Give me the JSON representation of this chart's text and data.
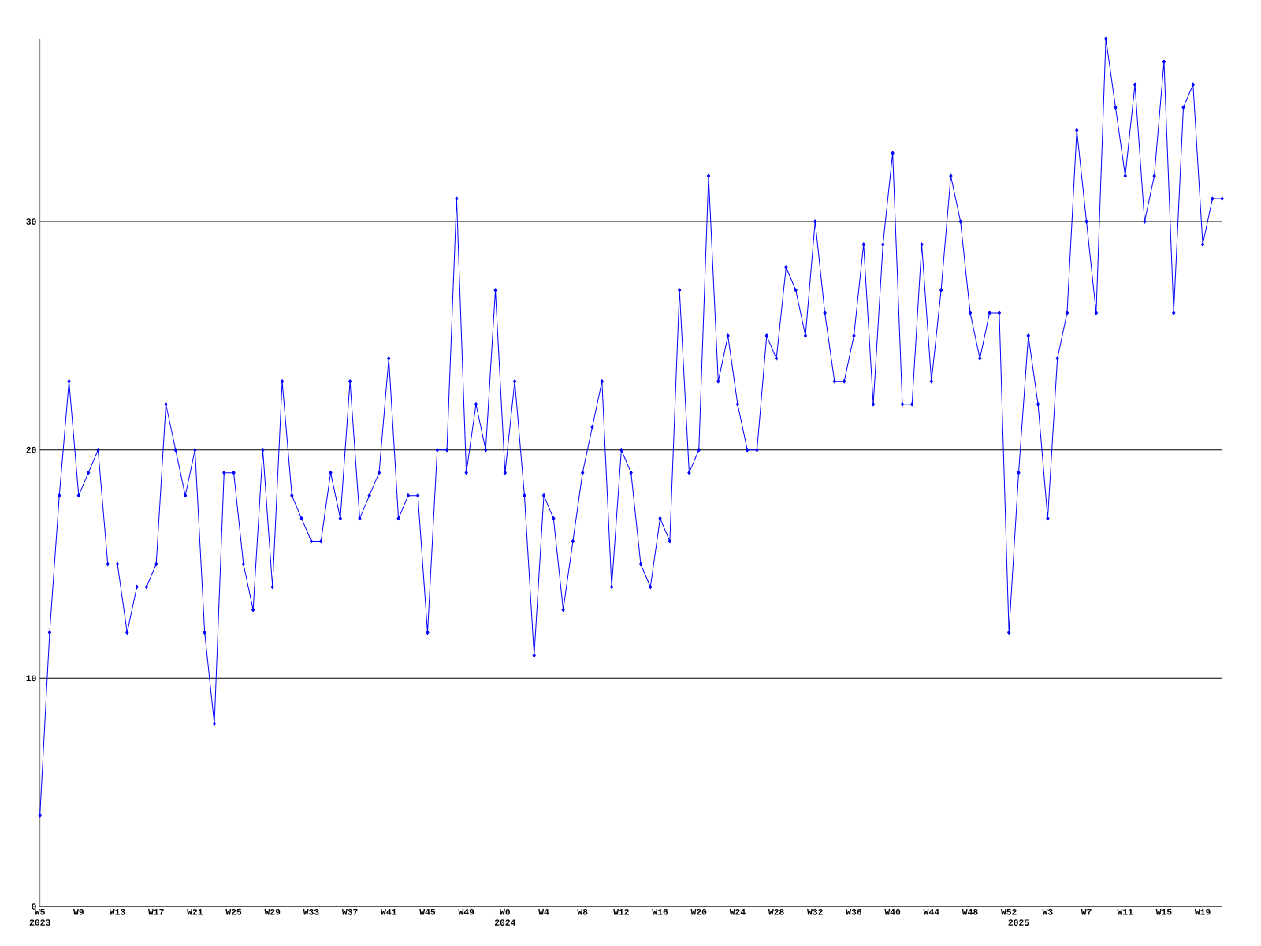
{
  "chart_data": {
    "type": "line",
    "color": "#0000ff",
    "marker": "diamond",
    "grid": "y",
    "ylim": [
      0,
      38
    ],
    "yticks": [
      0,
      10,
      20,
      30
    ],
    "categories": [
      "W5 2023",
      null,
      null,
      null,
      "W9",
      null,
      null,
      null,
      "W13",
      null,
      null,
      null,
      "W17",
      null,
      null,
      null,
      "W21",
      null,
      null,
      null,
      "W25",
      null,
      null,
      null,
      "W29",
      null,
      null,
      null,
      "W33",
      null,
      null,
      null,
      "W37",
      null,
      null,
      null,
      "W41",
      null,
      null,
      null,
      "W45",
      null,
      null,
      null,
      "W49",
      null,
      null,
      null,
      "W0 2024",
      null,
      null,
      null,
      "W4",
      null,
      null,
      null,
      "W8",
      null,
      null,
      null,
      "W12",
      null,
      null,
      null,
      "W16",
      null,
      null,
      null,
      "W20",
      null,
      null,
      null,
      "W24",
      null,
      null,
      null,
      "W28",
      null,
      null,
      null,
      "W32",
      null,
      null,
      null,
      "W36",
      null,
      null,
      null,
      "W40",
      null,
      null,
      null,
      "W44",
      null,
      null,
      null,
      "W48",
      null,
      null,
      null,
      "W52",
      "2025",
      null,
      null,
      "W3",
      null,
      null,
      null,
      "W7",
      null,
      null,
      null,
      "W11",
      null,
      null,
      null,
      "W15",
      null,
      null,
      null,
      "W19",
      null,
      null
    ],
    "values": [
      4,
      12,
      18,
      23,
      18,
      19,
      20,
      15,
      15,
      12,
      14,
      14,
      15,
      22,
      20,
      18,
      20,
      12,
      8,
      19,
      19,
      15,
      13,
      20,
      14,
      23,
      18,
      17,
      16,
      16,
      19,
      17,
      23,
      17,
      18,
      19,
      24,
      17,
      18,
      18,
      12,
      20,
      20,
      31,
      19,
      22,
      20,
      27,
      19,
      23,
      18,
      11,
      18,
      17,
      13,
      16,
      19,
      21,
      23,
      14,
      20,
      19,
      15,
      14,
      17,
      16,
      27,
      19,
      20,
      32,
      23,
      25,
      22,
      20,
      20,
      25,
      24,
      28,
      27,
      25,
      30,
      26,
      23,
      23,
      25,
      29,
      22,
      29,
      33,
      22,
      22,
      29,
      23,
      27,
      32,
      30,
      26,
      24,
      26,
      26,
      12,
      19,
      25,
      22,
      17,
      24,
      26,
      34,
      30,
      26,
      38,
      35,
      32,
      36,
      30,
      32,
      37,
      26,
      35,
      36,
      29,
      31,
      31
    ]
  }
}
